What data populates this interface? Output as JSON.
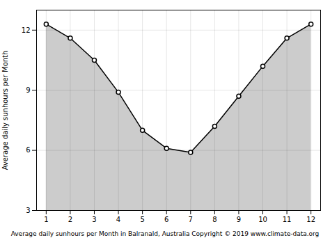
{
  "chart_data": {
    "type": "area",
    "x": [
      1,
      2,
      3,
      4,
      5,
      6,
      7,
      8,
      9,
      10,
      11,
      12
    ],
    "values": [
      12.3,
      11.6,
      10.5,
      8.9,
      7.0,
      6.1,
      5.9,
      7.2,
      8.7,
      10.2,
      11.6,
      12.3
    ],
    "xlabel": "Average daily sunhours per Month in Balranald, Australia Copyright © 2019 www.climate-data.org",
    "ylabel": "Average daily sunhours per Month",
    "xlim": [
      0.6,
      12.4
    ],
    "ylim": [
      3,
      13
    ],
    "xticks": [
      1,
      2,
      3,
      4,
      5,
      6,
      7,
      8,
      9,
      10,
      11,
      12
    ],
    "yticks": [
      3,
      6,
      9,
      12
    ],
    "grid": true,
    "marker": "circle"
  }
}
